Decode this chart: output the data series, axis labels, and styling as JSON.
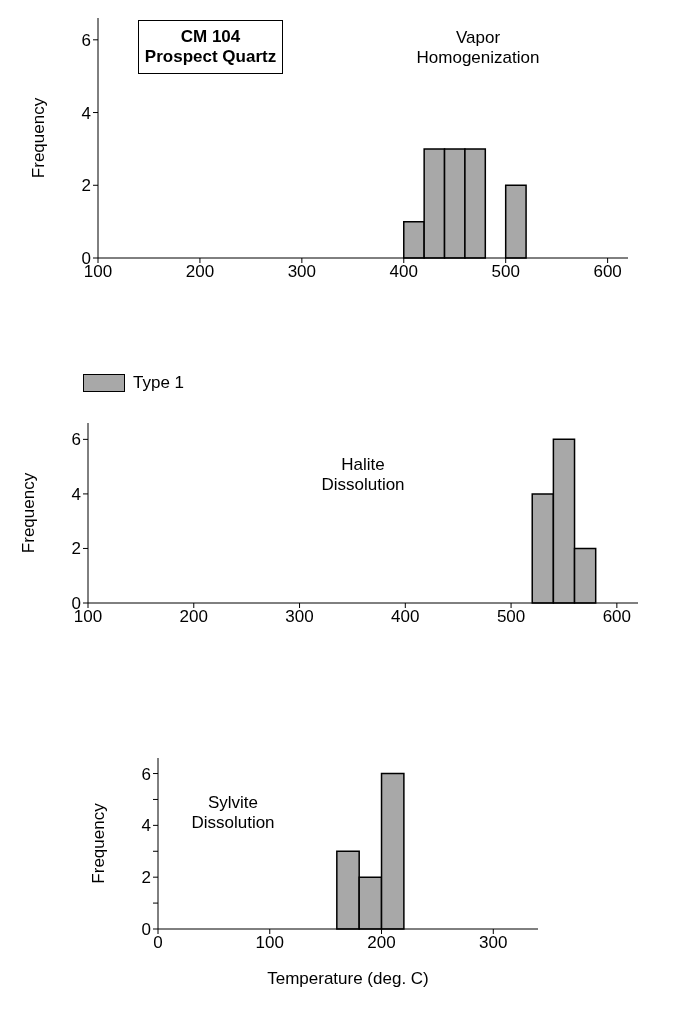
{
  "chart_data": [
    {
      "type": "histogram",
      "annotations": [
        "CM 104 Prospect Quartz",
        "Vapor Homogenization"
      ],
      "ylabel": "Frequency",
      "bins": [
        400,
        420,
        440,
        460,
        480,
        500,
        520
      ],
      "series": [
        {
          "color": "#a8a8a8",
          "values": [
            1,
            3,
            3,
            3,
            0,
            2
          ]
        }
      ],
      "xlim": [
        100,
        620
      ],
      "xticks": [
        100,
        200,
        300,
        400,
        500,
        600
      ],
      "ylim": [
        0,
        6.6
      ],
      "yticks": [
        0,
        2,
        4,
        6
      ],
      "grid": false
    },
    {
      "type": "histogram",
      "annotations": [
        "Halite Dissolution"
      ],
      "ylabel": "Frequency",
      "bins": [
        520,
        540,
        560,
        580
      ],
      "series": [
        {
          "name": "Type 1",
          "color": "#a8a8a8",
          "values": [
            4,
            6,
            2
          ]
        }
      ],
      "legend": "top left",
      "xlim": [
        100,
        620
      ],
      "xticks": [
        100,
        200,
        300,
        400,
        500,
        600
      ],
      "ylim": [
        0,
        6.6
      ],
      "yticks": [
        0,
        2,
        4,
        6
      ],
      "grid": false
    },
    {
      "type": "histogram",
      "annotations": [
        "Sylvite Dissolution"
      ],
      "xlabel": "Temperature (deg. C)",
      "ylabel": "Frequency",
      "bins": [
        160,
        180,
        200,
        220
      ],
      "series": [
        {
          "color": "#a8a8a8",
          "values": [
            3,
            2,
            6
          ]
        }
      ],
      "xlim": [
        0,
        340
      ],
      "xticks": [
        0,
        100,
        200,
        300
      ],
      "ylim": [
        0,
        6.6
      ],
      "yticks": [
        0,
        {
          "value": 1,
          "label": null
        },
        2,
        {
          "value": 3,
          "label": null
        },
        4,
        {
          "value": 5,
          "label": null
        },
        6
      ],
      "grid": false
    }
  ]
}
